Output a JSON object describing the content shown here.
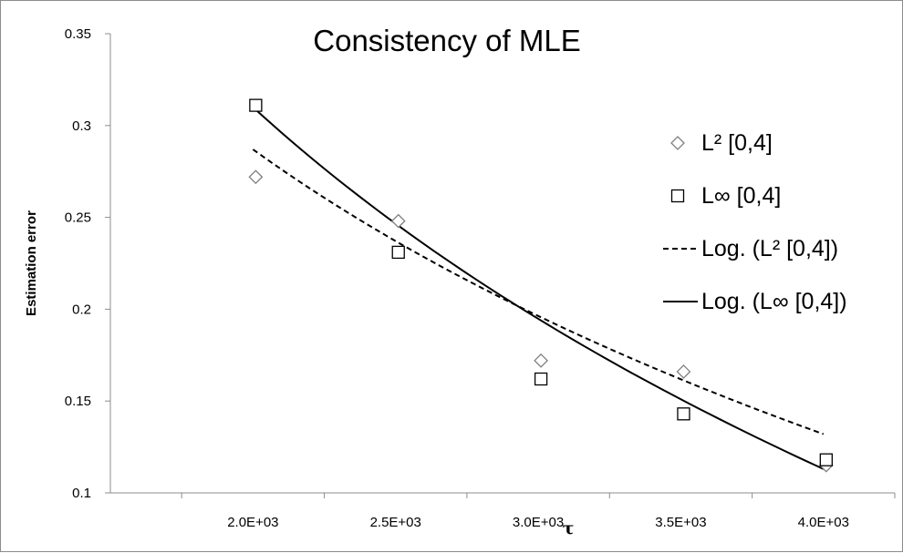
{
  "chart_data": {
    "type": "scatter",
    "title": "Consistency of MLE",
    "xlabel": "τ",
    "ylabel": "Estimation error",
    "xlim": [
      1500,
      4250
    ],
    "ylim": [
      0.1,
      0.35
    ],
    "x_ticks": [
      2000,
      2500,
      3000,
      3500,
      4000
    ],
    "x_tick_labels": [
      "2.0E+03",
      "2.5E+03",
      "3.0E+03",
      "3.5E+03",
      "4.0E+03"
    ],
    "y_ticks": [
      0.1,
      0.15,
      0.2,
      0.25,
      0.3,
      0.35
    ],
    "y_tick_labels": [
      "0.1",
      "0.15",
      "0.2",
      "0.25",
      "0.3",
      "0.35"
    ],
    "grid": false,
    "legend_position": "right",
    "series": [
      {
        "name": "L² [0,4]",
        "marker": "diamond",
        "color": "#808080",
        "x": [
          2000,
          2500,
          3000,
          3500,
          4000
        ],
        "y": [
          0.272,
          0.248,
          0.172,
          0.166,
          0.115
        ]
      },
      {
        "name": "L∞  [0,4]",
        "marker": "square",
        "color": "#000000",
        "x": [
          2000,
          2500,
          3000,
          3500,
          4000
        ],
        "y": [
          0.311,
          0.231,
          0.162,
          0.143,
          0.118
        ]
      }
    ],
    "trendlines": [
      {
        "name": "Log. (L² [0,4])",
        "style": "dashed",
        "color": "#000000",
        "fit": "logarithmic",
        "x_range": [
          2000,
          4000
        ],
        "y_endpoints": [
          0.287,
          0.132
        ]
      },
      {
        "name": "Log. (L∞  [0,4])",
        "style": "solid",
        "color": "#000000",
        "fit": "logarithmic",
        "x_range": [
          2000,
          4000
        ],
        "y_endpoints": [
          0.31,
          0.113
        ]
      }
    ]
  }
}
